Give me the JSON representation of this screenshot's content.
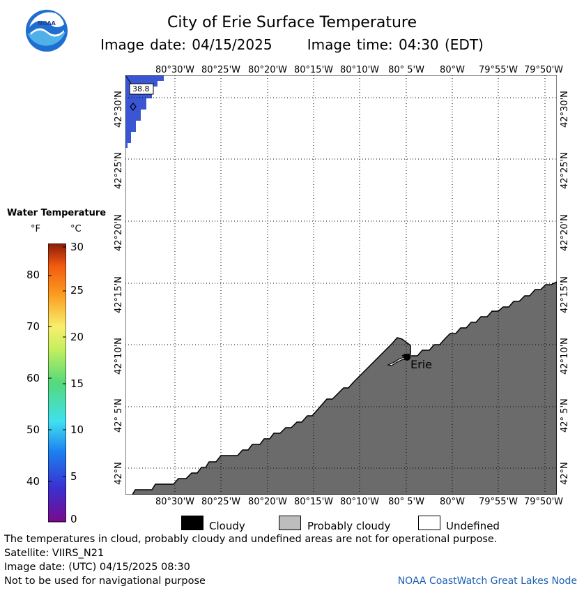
{
  "header": {
    "title": "City of Erie Surface Temperature",
    "image_date_label": "Image date: 04/15/2025",
    "image_time_label": "Image time: 04:30 (EDT)"
  },
  "map": {
    "lon_labels_top": [
      "80°30'W",
      "80°25'W",
      "80°20'W",
      "80°15'W",
      "80°10'W",
      "80° 5'W",
      "80°W",
      "79°55'W",
      "79°50'W"
    ],
    "lon_labels_bottom": [
      "80°30'W",
      "80°25'W",
      "80°20'W",
      "80°15'W",
      "80°10'W",
      "80° 5'W",
      "80°W",
      "79°55'W",
      "79°50'W"
    ],
    "lat_labels_left": [
      "42°30'N",
      "42°25'N",
      "42°20'N",
      "42°15'N",
      "42°10'N",
      "42° 5'N",
      "42°N"
    ],
    "lat_labels_right": [
      "42°30'N",
      "42°25'N",
      "42°20'N",
      "42°15'N",
      "42°10'N",
      "42° 5'N",
      "42°N"
    ],
    "buoy_value": "38.8",
    "city_label": "Erie",
    "colors": {
      "land": "#6b6b6b",
      "water_cold": "#3a56d4",
      "grid": "#000000"
    }
  },
  "legend": {
    "title": "Water Temperature",
    "unit_f": "°F",
    "unit_c": "°C",
    "f_ticks": [
      "80",
      "70",
      "60",
      "50",
      "40"
    ],
    "c_ticks": [
      "30",
      "25",
      "20",
      "15",
      "10",
      "5",
      "0"
    ]
  },
  "key": {
    "cloudy": "Cloudy",
    "probably_cloudy": "Probably cloudy",
    "undefined": "Undefined",
    "colors": {
      "cloudy": "#000000",
      "probably_cloudy": "#bdbdbd",
      "undefined": "#ffffff"
    }
  },
  "footer": {
    "line1": "The temperatures in cloud, probably cloudy and undefined areas are not for operational purpose.",
    "line2": "Satellite: VIIRS_N21",
    "line3": "Image date: (UTC) 04/15/2025  08:30",
    "line4": "Not to be used for navigational purpose",
    "credit": "NOAA CoastWatch Great Lakes Node"
  }
}
